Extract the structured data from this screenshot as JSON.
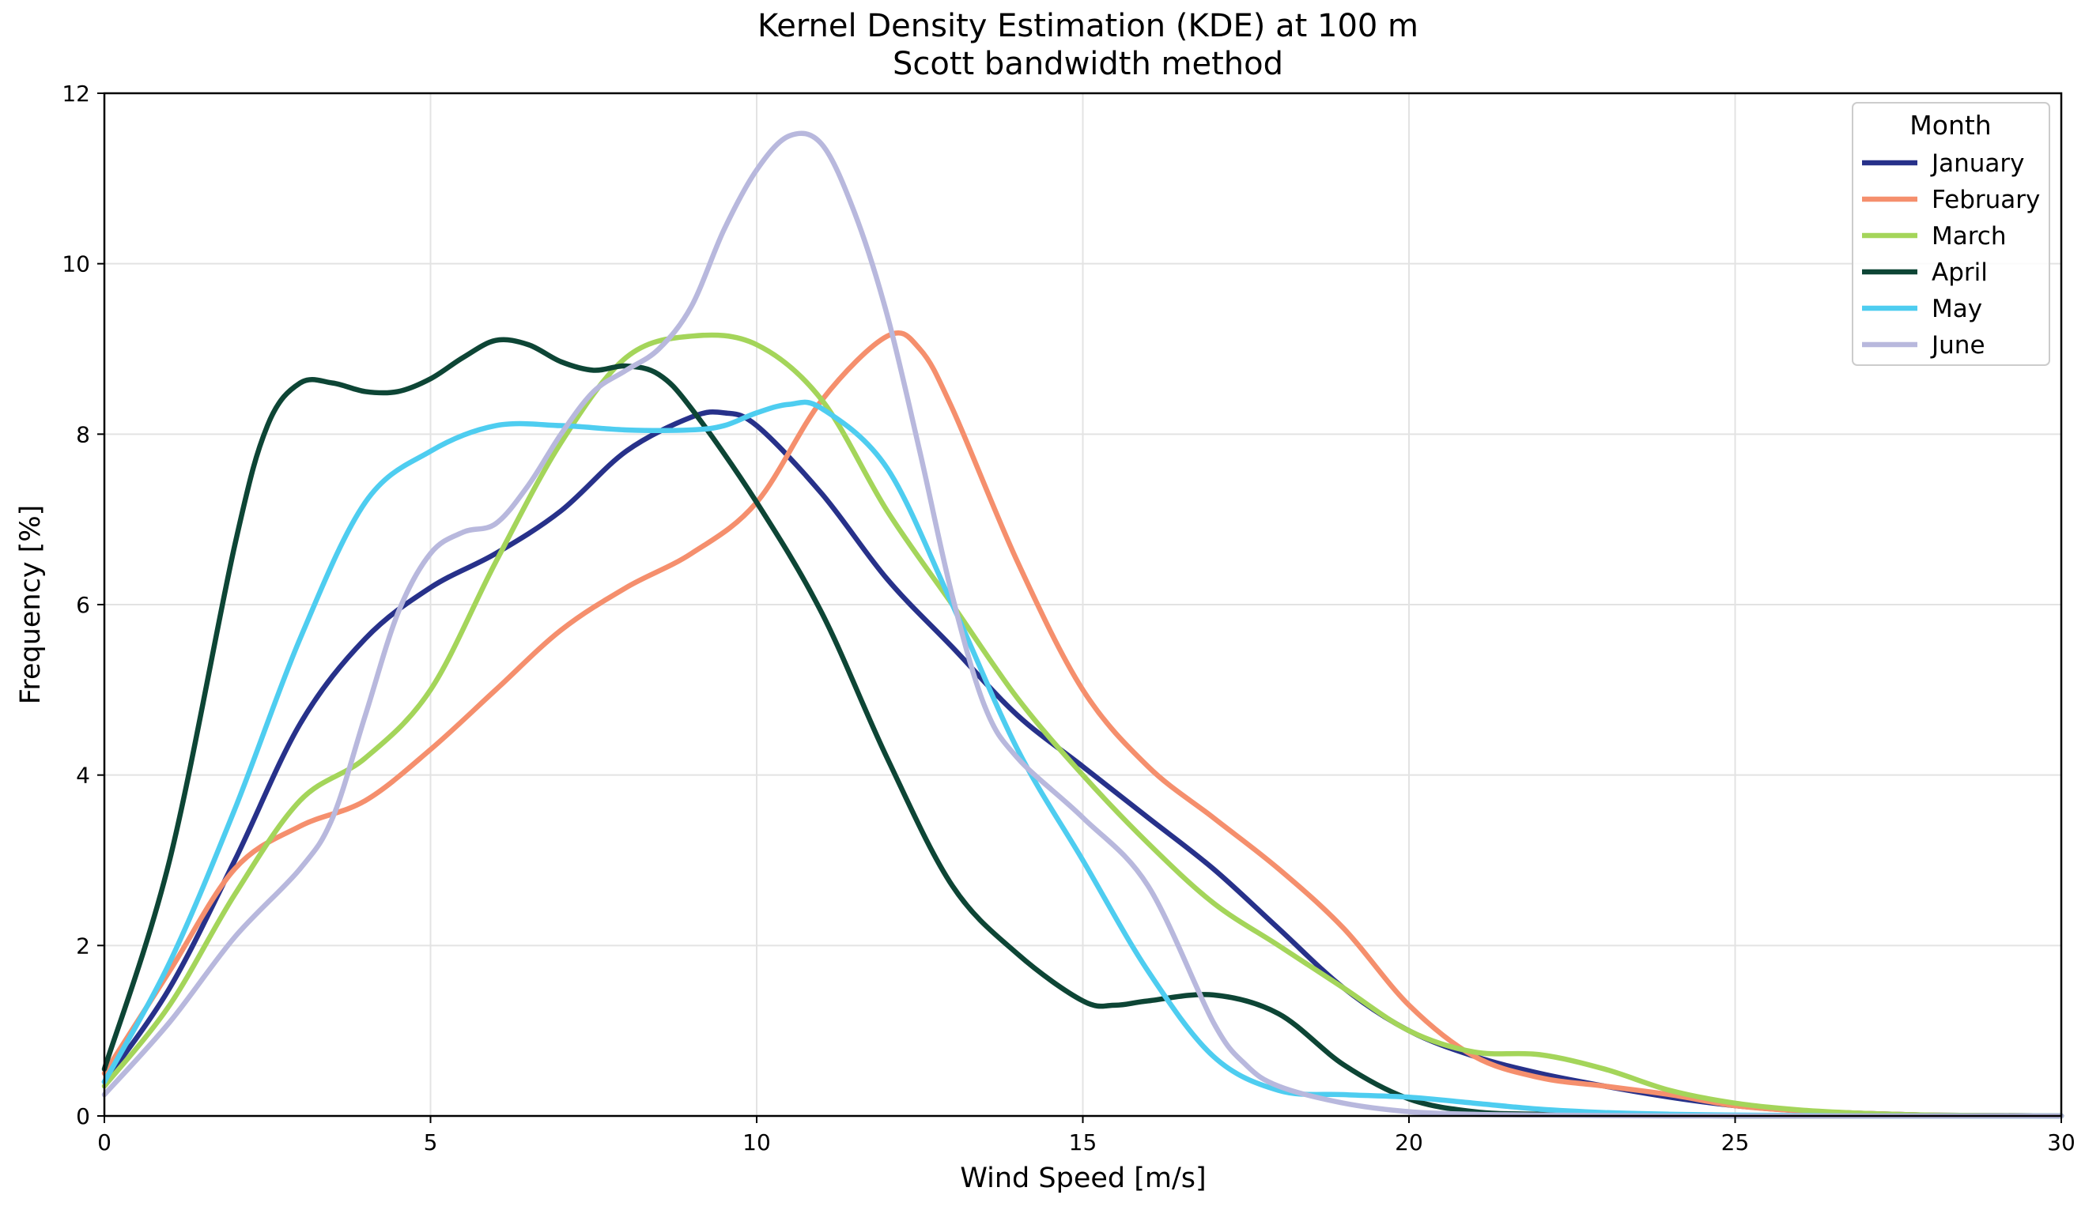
{
  "chart_data": {
    "type": "line",
    "title": "Kernel Density Estimation (KDE) at 100 m",
    "subtitle": "Scott bandwidth method",
    "xlabel": "Wind Speed [m/s]",
    "ylabel": "Frequency [%]",
    "xlim": [
      0,
      30
    ],
    "ylim": [
      0,
      12
    ],
    "xticks": [
      0,
      5,
      10,
      15,
      20,
      25,
      30
    ],
    "yticks": [
      0,
      2,
      4,
      6,
      8,
      10,
      12
    ],
    "grid": true,
    "legend": {
      "title": "Month",
      "placement": "top-right"
    },
    "series": [
      {
        "name": "January",
        "color": "#27318a",
        "x": [
          0,
          1,
          2,
          3,
          4,
          5,
          6,
          7,
          8,
          9,
          9.5,
          10,
          11,
          12,
          13,
          14,
          15,
          16,
          17,
          18,
          19,
          20,
          21,
          22,
          23,
          24,
          25,
          26,
          27,
          28,
          29,
          30
        ],
        "y": [
          0.4,
          1.5,
          3.0,
          4.6,
          5.6,
          6.2,
          6.6,
          7.1,
          7.8,
          8.2,
          8.25,
          8.1,
          7.3,
          6.3,
          5.5,
          4.7,
          4.1,
          3.5,
          2.9,
          2.2,
          1.5,
          1.0,
          0.7,
          0.5,
          0.35,
          0.22,
          0.12,
          0.06,
          0.03,
          0.01,
          0.005,
          0.0
        ]
      },
      {
        "name": "February",
        "color": "#f58f6d",
        "x": [
          0,
          1,
          2,
          3,
          4,
          5,
          6,
          7,
          8,
          9,
          10,
          11,
          12,
          12.5,
          13,
          14,
          15,
          16,
          17,
          18,
          19,
          20,
          21,
          22,
          23,
          24,
          25,
          26,
          27,
          28,
          29,
          30
        ],
        "y": [
          0.5,
          1.7,
          2.9,
          3.4,
          3.7,
          4.3,
          5.0,
          5.7,
          6.2,
          6.6,
          7.2,
          8.4,
          9.15,
          9.0,
          8.3,
          6.5,
          5.0,
          4.1,
          3.5,
          2.9,
          2.2,
          1.3,
          0.7,
          0.45,
          0.35,
          0.25,
          0.12,
          0.06,
          0.03,
          0.01,
          0.005,
          0.0
        ]
      },
      {
        "name": "March",
        "color": "#a4d55a",
        "x": [
          0,
          1,
          2,
          3,
          4,
          5,
          6,
          7,
          8,
          9,
          10,
          11,
          12,
          13,
          14,
          15,
          16,
          17,
          18,
          19,
          20,
          21,
          22,
          23,
          24,
          25,
          26,
          27,
          28,
          29,
          30
        ],
        "y": [
          0.35,
          1.3,
          2.6,
          3.7,
          4.2,
          5.0,
          6.5,
          7.9,
          8.9,
          9.15,
          9.05,
          8.4,
          7.1,
          6.0,
          4.9,
          4.0,
          3.2,
          2.5,
          2.0,
          1.5,
          1.0,
          0.75,
          0.72,
          0.55,
          0.3,
          0.15,
          0.07,
          0.03,
          0.01,
          0.005,
          0.0
        ]
      },
      {
        "name": "April",
        "color": "#0d4535",
        "x": [
          0,
          1,
          2,
          2.5,
          3,
          3.5,
          4,
          4.5,
          5,
          5.5,
          6,
          6.5,
          7,
          7.5,
          8,
          8.5,
          9,
          10,
          11,
          12,
          13,
          14,
          15,
          15.5,
          16,
          17,
          18,
          19,
          20,
          21,
          22,
          23,
          24,
          25,
          26,
          27,
          28,
          29,
          30
        ],
        "y": [
          0.55,
          3.0,
          6.7,
          8.1,
          8.6,
          8.6,
          8.5,
          8.5,
          8.65,
          8.9,
          9.1,
          9.05,
          8.85,
          8.75,
          8.8,
          8.7,
          8.3,
          7.2,
          5.9,
          4.2,
          2.7,
          1.9,
          1.35,
          1.3,
          1.35,
          1.42,
          1.2,
          0.6,
          0.2,
          0.05,
          0.02,
          0.01,
          0.005,
          0.0,
          0.0,
          0.0,
          0.0,
          0.0,
          0.0
        ]
      },
      {
        "name": "May",
        "color": "#4ecdf0",
        "x": [
          0,
          1,
          2,
          3,
          4,
          5,
          6,
          7,
          8,
          9,
          9.5,
          10,
          10.5,
          11,
          12,
          13,
          14,
          15,
          16,
          17,
          18,
          19,
          20,
          21,
          22,
          23,
          24,
          25,
          26,
          27,
          28,
          29,
          30
        ],
        "y": [
          0.4,
          1.8,
          3.6,
          5.6,
          7.2,
          7.8,
          8.1,
          8.1,
          8.05,
          8.05,
          8.1,
          8.25,
          8.35,
          8.3,
          7.6,
          6.0,
          4.3,
          3.0,
          1.7,
          0.7,
          0.3,
          0.25,
          0.22,
          0.15,
          0.08,
          0.04,
          0.02,
          0.01,
          0.005,
          0.0,
          0.0,
          0.0,
          0.0
        ]
      },
      {
        "name": "June",
        "color": "#b8b8dd",
        "x": [
          0,
          1,
          2,
          3,
          3.5,
          4,
          4.5,
          5,
          5.5,
          6,
          6.5,
          7,
          7.5,
          8,
          8.5,
          9,
          9.5,
          10,
          10.5,
          11,
          11.5,
          12,
          12.5,
          13,
          13.5,
          14,
          15,
          16,
          17,
          17.5,
          18,
          19,
          20,
          21,
          22,
          23,
          24,
          25,
          26,
          27,
          28,
          29,
          30
        ],
        "y": [
          0.25,
          1.1,
          2.1,
          2.9,
          3.5,
          4.7,
          5.9,
          6.6,
          6.85,
          6.95,
          7.4,
          8.0,
          8.5,
          8.75,
          9.0,
          9.5,
          10.4,
          11.1,
          11.5,
          11.4,
          10.6,
          9.4,
          7.8,
          6.1,
          4.8,
          4.2,
          3.5,
          2.7,
          1.1,
          0.6,
          0.35,
          0.15,
          0.05,
          0.02,
          0.01,
          0.005,
          0.0,
          0.0,
          0.0,
          0.0,
          0.0,
          0.0,
          0.0
        ]
      }
    ]
  }
}
